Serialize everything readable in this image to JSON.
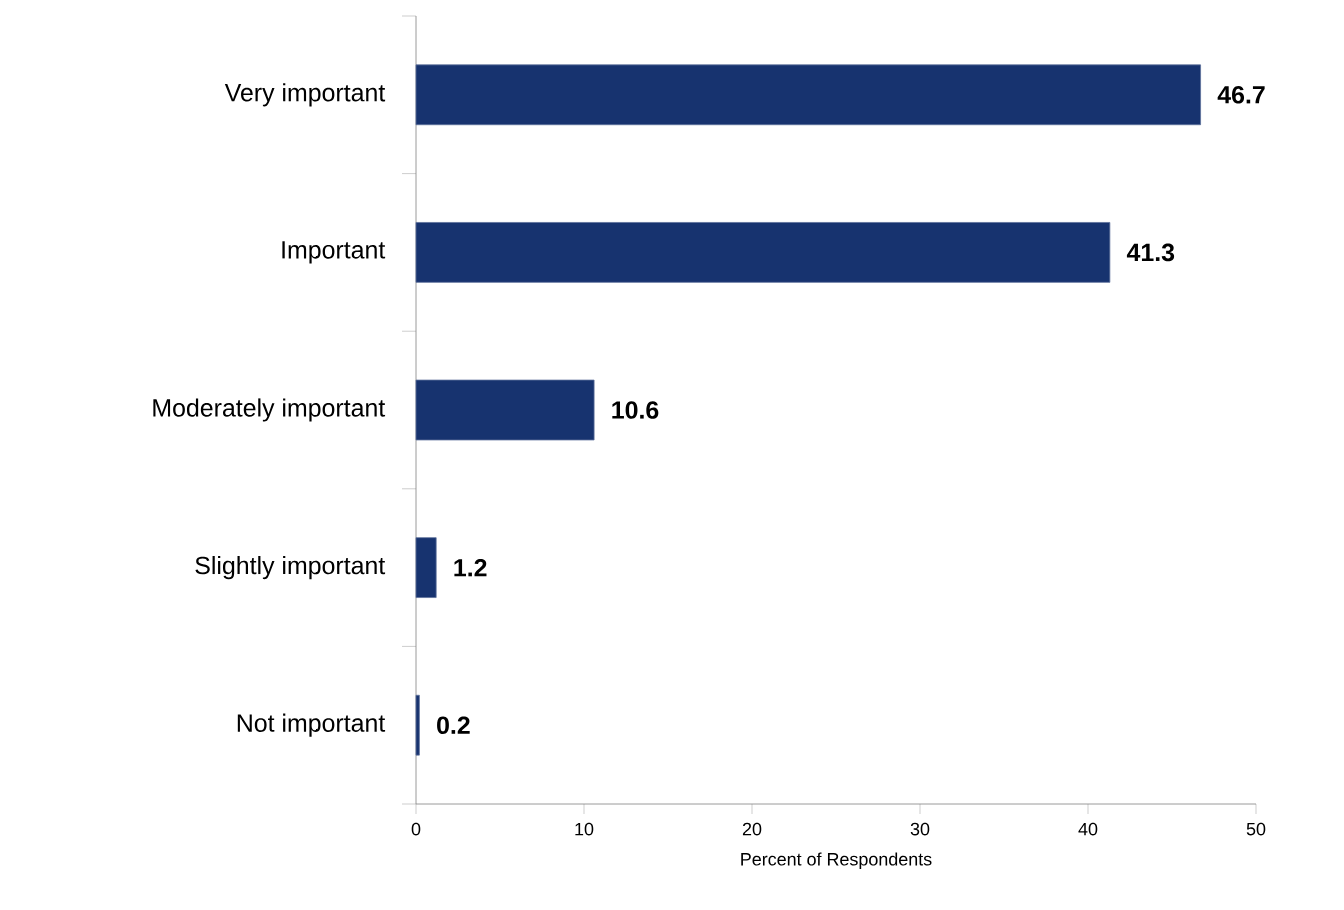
{
  "chart_data": {
    "type": "bar",
    "orientation": "horizontal",
    "xlabel": "Percent of Respondents",
    "categories": [
      "Very important",
      "Important",
      "Moderately important",
      "Slightly important",
      "Not important"
    ],
    "values": [
      46.7,
      41.3,
      10.6,
      1.2,
      0.2
    ],
    "color": "#17336f",
    "data_labels": true,
    "xlim": [
      0,
      50
    ],
    "xticks": [
      0,
      10,
      20,
      30,
      40,
      50
    ]
  }
}
